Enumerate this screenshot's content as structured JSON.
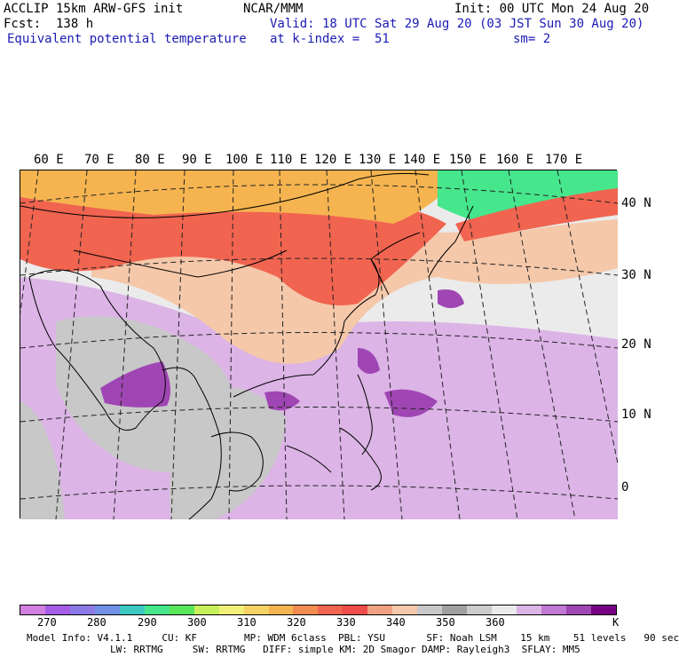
{
  "header": {
    "model": "ACCLIP 15km ARW-GFS init",
    "fcst": "Fcst:  138 h",
    "title": "Equivalent potential temperature",
    "org": "NCAR/MMM",
    "valid": "Valid: 18 UTC Sat 29 Aug 20 (03 JST Sun 30 Aug 20)",
    "level": "at k-index =  51",
    "init": "Init: 00 UTC Mon 24 Aug 20",
    "smoothing": "sm= 2"
  },
  "lon_labels": [
    "60 E",
    "70 E",
    "80 E",
    "90 E",
    "100 E",
    "110 E",
    "120 E",
    "130 E",
    "140 E",
    "150 E",
    "160 E",
    "170 E"
  ],
  "lat_labels": [
    "40 N",
    "30 N",
    "20 N",
    "10 N",
    "0"
  ],
  "colorbar": {
    "colors": [
      "#d27fe0",
      "#a55de6",
      "#8c78e6",
      "#7090e6",
      "#3cc8c0",
      "#46e68c",
      "#5ae65a",
      "#c8f05a",
      "#f0f078",
      "#f5d264",
      "#f5b450",
      "#f08c50",
      "#f06450",
      "#f04b4b",
      "#f0a082",
      "#f5c8aa",
      "#c8c8c8",
      "#a0a0a0",
      "#cccccc",
      "#ebebeb",
      "#dcb4e6",
      "#c078d2",
      "#a046b4",
      "#780082"
    ],
    "ticks": [
      "270",
      "280",
      "290",
      "300",
      "310",
      "320",
      "330",
      "340",
      "350",
      "360",
      "K"
    ]
  },
  "model_info": {
    "line1": "Model Info: V4.1.1     CU: KF        MP: WDM 6class  PBL: YSU       SF: Noah LSM    15 km    51 levels   90 sec",
    "line2": "LW: RRTMG     SW: RRTMG   DIFF: simple KM: 2D Smagor DAMP: Rayleigh3  SFLAY: MM5"
  },
  "map_colors": {
    "far_north": "#46e68c",
    "hot": "#f06450",
    "warm": "#f5b450",
    "mid": "#f5c8aa",
    "grey": "#c8c8c8",
    "light": "#ebebeb",
    "purple_light": "#dcb4e6",
    "purple": "#a046b4",
    "coast": "#000000"
  }
}
